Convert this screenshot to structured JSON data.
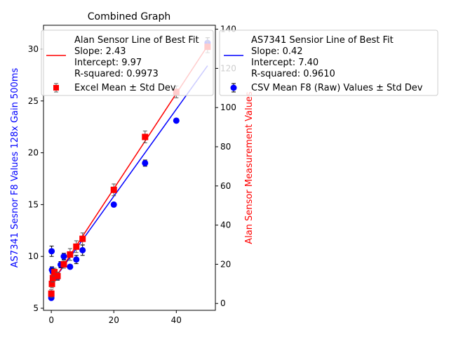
{
  "chart_data": {
    "type": "scatter",
    "title": "Combined Graph",
    "xlabel": "",
    "ylabel_left": "AS7341 Sesnor F8 Values 128x Gain 500ms",
    "ylabel_right": "Alan Sensor Measurement Values",
    "xlim": [
      -2.5,
      52.5
    ],
    "ylim_left": [
      4.8,
      32.3
    ],
    "ylim_right": [
      -3.5,
      142
    ],
    "xticks": [
      0,
      20,
      40
    ],
    "yticks_left": [
      5,
      10,
      15,
      20,
      25,
      30
    ],
    "yticks_right": [
      0,
      20,
      40,
      60,
      80,
      100,
      120,
      140
    ],
    "colors": {
      "left": "#0000ff",
      "right": "#ff0000",
      "errbar": "#555555"
    },
    "series": [
      {
        "name": "CSV Mean F8 (Raw) Values ± Std Dev",
        "axis": "left",
        "marker": "circle",
        "color": "#0000ff",
        "x": [
          0,
          0.1,
          0.2,
          0.5,
          1,
          2,
          3,
          4,
          6,
          8,
          10,
          20,
          30,
          40,
          50
        ],
        "y": [
          6.0,
          10.5,
          8.7,
          8.5,
          8.3,
          8.0,
          9.2,
          10.0,
          9.0,
          9.7,
          10.6,
          15.0,
          19.0,
          23.1,
          30.6
        ],
        "err": [
          0.2,
          0.5,
          0.3,
          0.3,
          0.2,
          0.3,
          0.3,
          0.3,
          0.2,
          0.4,
          0.5,
          0.2,
          0.3,
          0.2,
          0.5
        ]
      },
      {
        "name": "Excel Mean ± Std Dev",
        "axis": "right",
        "marker": "square",
        "color": "#ff0000",
        "x": [
          0,
          0.2,
          0.5,
          1,
          2,
          4,
          6,
          8,
          10,
          20,
          30,
          40,
          50
        ],
        "y": [
          5,
          10,
          13,
          16,
          14,
          20,
          25,
          29,
          33,
          58,
          85,
          108,
          131
        ],
        "err": [
          2,
          2,
          2,
          2,
          2,
          2,
          3,
          3,
          3,
          3,
          3,
          3,
          3
        ]
      }
    ],
    "fits": [
      {
        "axis": "left",
        "color": "#0000ff",
        "slope": 0.42,
        "intercept": 7.4
      },
      {
        "axis": "right",
        "color": "#ff0000",
        "slope": 2.43,
        "intercept": 9.97
      }
    ],
    "legend_left": {
      "line_text": [
        "Alan Sensor Line of Best Fit",
        "Slope: 2.43",
        "Intercept: 9.97",
        "R-squared: 0.9973"
      ],
      "marker_text": "Excel Mean ± Std Dev"
    },
    "legend_right": {
      "line_text": [
        "AS7341 Sensior Line of Best Fit",
        "Slope: 0.42",
        "Intercept: 7.40",
        "R-squared: 0.9610"
      ],
      "marker_text": "CSV Mean F8 (Raw) Values ± Std Dev"
    }
  }
}
